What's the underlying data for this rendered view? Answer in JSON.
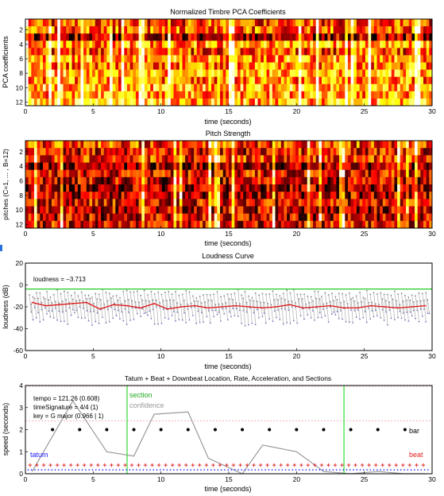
{
  "chart_data": [
    {
      "type": "heatmap",
      "title": "Normalized Timbre PCA Coefficients",
      "xlabel": "time (seconds)",
      "ylabel": "PCA coefficients",
      "xlim": [
        0,
        30
      ],
      "ylim": [
        12,
        1
      ],
      "xticks": [
        "0",
        "5",
        "10",
        "15",
        "20",
        "25",
        "30"
      ],
      "yticks": [
        "2",
        "4",
        "6",
        "8",
        "10",
        "12"
      ],
      "rows": 12,
      "colormap": "hot",
      "row_intensity": [
        0.45,
        0.5,
        0.25,
        0.6,
        0.45,
        0.6,
        0.55,
        0.65,
        0.55,
        0.65,
        0.6,
        0.65
      ]
    },
    {
      "type": "heatmap",
      "title": "Pitch Strength",
      "xlabel": "time (seconds)",
      "ylabel": "pitches (C=1, ... , B=12)",
      "xlim": [
        0,
        30
      ],
      "ylim": [
        12,
        1
      ],
      "xticks": [
        "0",
        "5",
        "10",
        "15",
        "20",
        "25",
        "30"
      ],
      "yticks": [
        "2",
        "4",
        "6",
        "8",
        "10",
        "12"
      ],
      "rows": 12,
      "colormap": "hot",
      "row_intensity": [
        0.45,
        0.35,
        0.4,
        0.25,
        0.35,
        0.3,
        0.25,
        0.3,
        0.35,
        0.3,
        0.3,
        0.35
      ]
    },
    {
      "type": "line",
      "title": "Loudness Curve",
      "xlabel": "time (seconds)",
      "ylabel": "loudness (dB)",
      "xlim": [
        0,
        30
      ],
      "ylim": [
        -60,
        20
      ],
      "xticks": [
        "0",
        "5",
        "10",
        "15",
        "20",
        "25",
        "30"
      ],
      "yticks": [
        "-60",
        "-40",
        "-20",
        "0",
        "20"
      ],
      "annotation": "loudness = −3.713",
      "reference_level": -3.713,
      "series": [
        {
          "color": "#dd1111",
          "x": [
            0.5,
            1.5,
            2.5,
            3.5,
            4.5,
            5.5,
            6.5,
            7.5,
            8.5,
            9.5,
            10.5,
            11.5,
            12.5,
            13.5,
            14.5,
            15.5,
            16.5,
            17.5,
            18.5,
            19.5,
            20.5,
            21.5,
            22.5,
            23.5,
            24.5,
            25.5,
            26.5,
            27.5,
            28.5,
            29.5
          ],
          "y": [
            -16,
            -19,
            -18,
            -17,
            -16,
            -22,
            -18,
            -19,
            -21,
            -17,
            -22,
            -20,
            -19,
            -21,
            -20,
            -19,
            -20,
            -21,
            -20,
            -18,
            -21,
            -20,
            -19,
            -21,
            -21,
            -19,
            -20,
            -21,
            -20,
            -19
          ]
        },
        {
          "color": "#aaaaaa",
          "x": [
            0.5,
            1.5,
            2.5,
            3.5,
            4.5,
            5.5,
            6.5,
            7.5,
            8.5,
            9.5,
            10.5,
            11.5,
            12.5,
            13.5,
            14.5,
            15.5,
            16.5,
            17.5,
            18.5,
            19.5,
            20.5,
            21.5,
            22.5,
            23.5,
            24.5,
            25.5,
            26.5,
            27.5,
            28.5,
            29.5
          ],
          "y_min": [
            -36,
            -34,
            -37,
            -33,
            -38,
            -36,
            -35,
            -37,
            -34,
            -36,
            -35,
            -38,
            -36,
            -37,
            -34,
            -36,
            -38,
            -35,
            -36,
            -37,
            -35,
            -36,
            -34,
            -37,
            -35,
            -36,
            -37,
            -35,
            -36,
            -34
          ],
          "y_max": [
            -5,
            -6,
            -4,
            -5,
            -6,
            -4,
            -6,
            -5,
            -4,
            -6,
            -5,
            -4,
            -6,
            -5,
            -5,
            -4,
            -6,
            -5,
            -5,
            -4,
            -6,
            -5,
            -5,
            -4,
            -6,
            -5,
            -5,
            -4,
            -6,
            -5
          ]
        }
      ]
    },
    {
      "type": "scatter",
      "title": "Tatum + Beat + Downbeat Location, Rate, Acceleration, and Sections",
      "xlabel": "time (seconds)",
      "ylabel": "speed (seconds)",
      "xlim": [
        0,
        30
      ],
      "ylim": [
        0,
        4
      ],
      "xticks": [
        "0",
        "5",
        "10",
        "15",
        "20",
        "25",
        "30"
      ],
      "yticks": [
        "0",
        "1",
        "2",
        "3",
        "4"
      ],
      "info": [
        "tempo = 121.26 (0.608)",
        "timeSignature = 4/4 (1)",
        "key = G major (0.966 | 1)"
      ],
      "labels": {
        "section": "section",
        "confidence": "confidence",
        "bar": "bar",
        "tatum": "tatum",
        "beat": "beat"
      },
      "sections": [
        7.5,
        23.5
      ],
      "bars": {
        "x": [
          2,
          4,
          6,
          8,
          10,
          12,
          14,
          16,
          18,
          20,
          22,
          24,
          26,
          28
        ],
        "y": 2
      },
      "beats": {
        "step": 0.5,
        "y": 0.5
      },
      "tatums": {
        "step": 0.25,
        "y": 0.25
      },
      "confidence": {
        "x": [
          0.5,
          2,
          3.5,
          6,
          8,
          9.5,
          12,
          13.5,
          16,
          17.5,
          20,
          22,
          24,
          26,
          28,
          29.5
        ],
        "y": [
          0.1,
          1.7,
          3.3,
          1.0,
          0.8,
          2.7,
          2.8,
          0.7,
          0.0,
          1.3,
          1.0,
          0.1,
          0.0,
          0.1,
          0.0,
          0.0
        ]
      },
      "reference_line": 2.4,
      "top_line": 4
    }
  ]
}
